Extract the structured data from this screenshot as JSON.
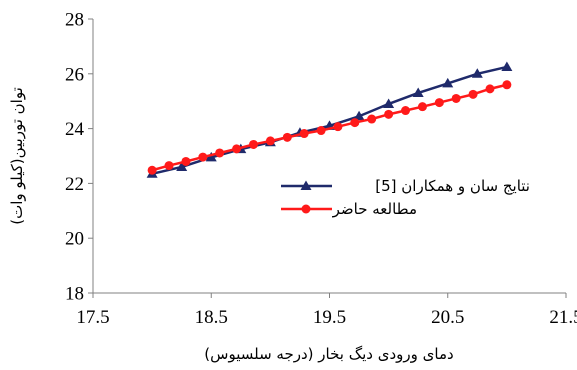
{
  "chart_data": {
    "type": "line",
    "xlabel": "دمای ورودی دیگ بخار (درجه سلسیوس)",
    "ylabel": "توان توربین(کیلو وات)",
    "xlim": [
      17.5,
      21.5
    ],
    "ylim": [
      18,
      28
    ],
    "xticks": [
      "17.5",
      "18.5",
      "19.5",
      "20.5",
      "21.5"
    ],
    "yticks": [
      "18",
      "20",
      "22",
      "24",
      "26",
      "28"
    ],
    "grid": false,
    "legend_position": "right-middle",
    "series": [
      {
        "name": "نتایج سان و همکاران [5]",
        "color": "#1f2a6b",
        "marker": "triangle",
        "x": [
          18.0,
          18.25,
          18.5,
          18.75,
          19.0,
          19.25,
          19.5,
          19.75,
          20.0,
          20.25,
          20.5,
          20.75,
          21.0
        ],
        "y": [
          22.35,
          22.6,
          22.95,
          23.25,
          23.5,
          23.85,
          24.1,
          24.45,
          24.9,
          25.3,
          25.65,
          26.0,
          26.25
        ]
      },
      {
        "name": "مطالعه حاضر",
        "color": "#ff1a1a",
        "marker": "circle",
        "x": [
          18.0,
          18.143,
          18.286,
          18.429,
          18.571,
          18.714,
          18.857,
          19.0,
          19.143,
          19.286,
          19.429,
          19.571,
          19.714,
          19.857,
          20.0,
          20.143,
          20.286,
          20.429,
          20.571,
          20.714,
          20.857,
          21.0
        ],
        "y": [
          22.48,
          22.65,
          22.8,
          22.96,
          23.11,
          23.26,
          23.42,
          23.55,
          23.68,
          23.82,
          23.93,
          24.07,
          24.22,
          24.35,
          24.52,
          24.66,
          24.8,
          24.95,
          25.1,
          25.25,
          25.45,
          25.6
        ]
      }
    ]
  }
}
